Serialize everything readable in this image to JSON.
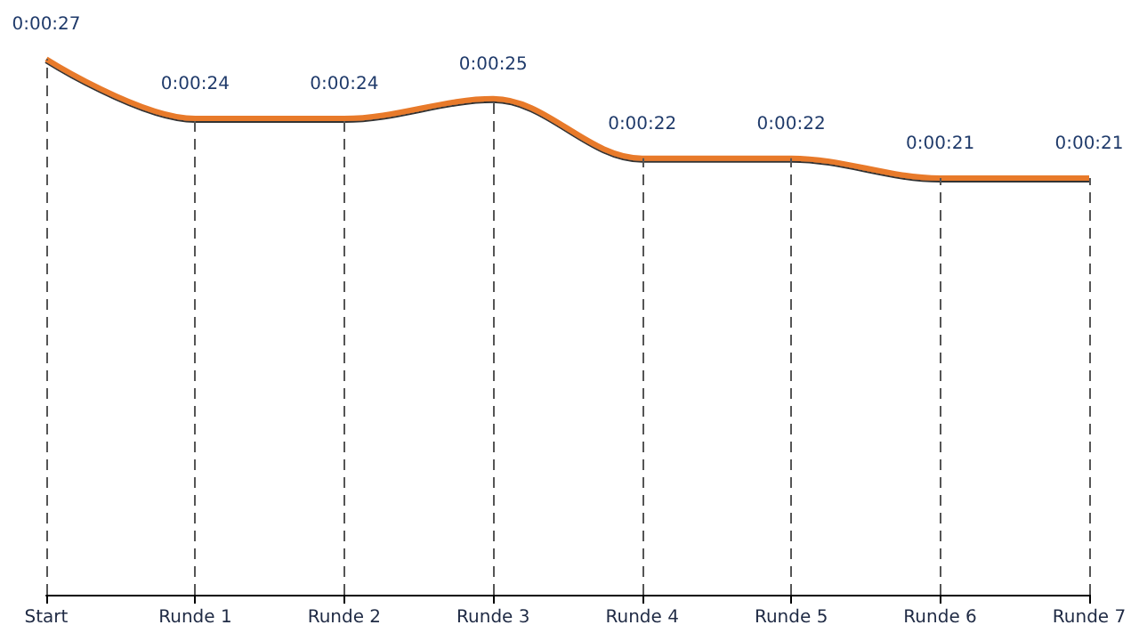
{
  "chart_data": {
    "type": "line",
    "categories": [
      "Start",
      "Runde 1",
      "Runde 2",
      "Runde 3",
      "Runde 4",
      "Runde 5",
      "Runde 6",
      "Runde 7"
    ],
    "series": [
      {
        "color": "#e87a2c",
        "values": [
          27,
          24,
          24,
          25,
          22,
          22,
          21,
          21
        ],
        "value_labels": [
          "0:00:27",
          "0:00:24",
          "0:00:24",
          "0:00:25",
          "0:00:22",
          "0:00:22",
          "0:00:21",
          "0:00:21"
        ]
      }
    ],
    "tick_labels": "x",
    "grid": "x",
    "marker": "none"
  }
}
